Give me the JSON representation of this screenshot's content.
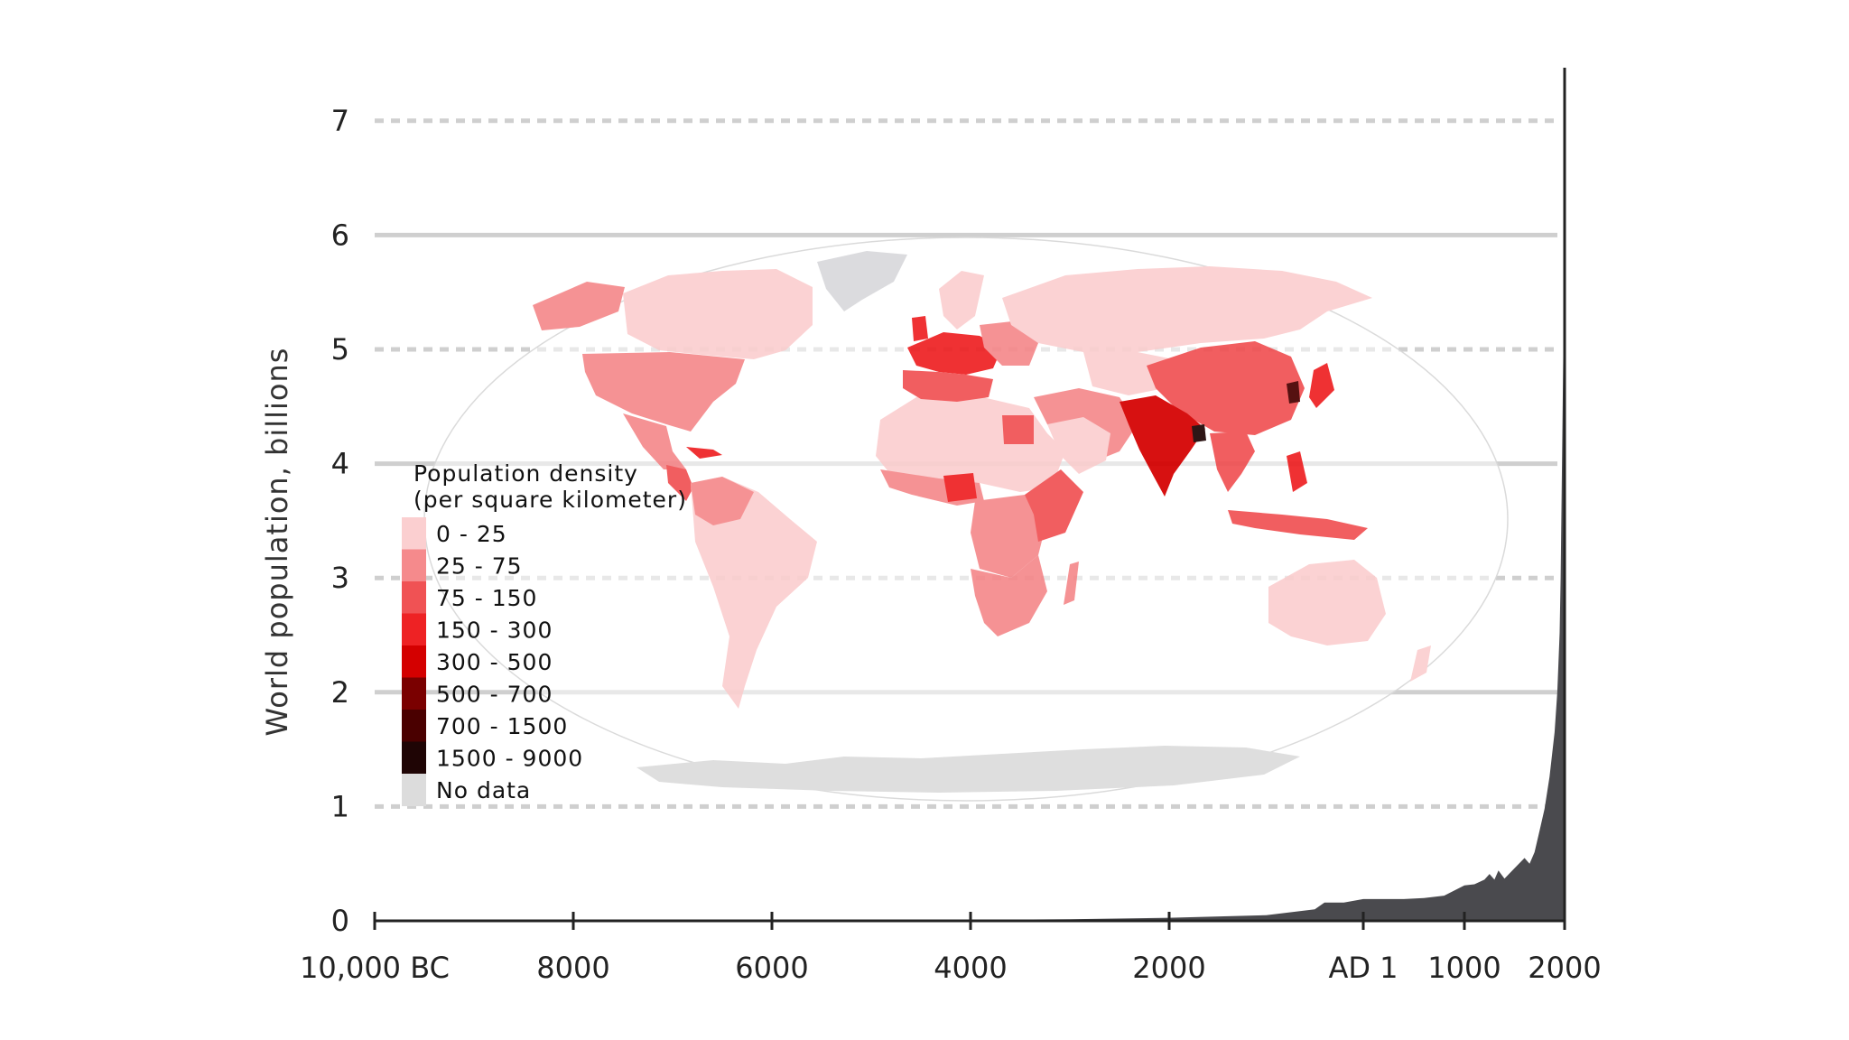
{
  "chart_data": {
    "type": "area",
    "title": "",
    "ylabel": "World population, billions",
    "xlabel": "",
    "ylim": [
      0,
      7.7
    ],
    "yticks": [
      0,
      1,
      2,
      3,
      4,
      5,
      6,
      7
    ],
    "ytick_labels": [
      "0",
      "1",
      "2",
      "3",
      "4",
      "5",
      "6",
      "7"
    ],
    "xticks": [
      -10000,
      -8000,
      -6000,
      -4000,
      -2000,
      0,
      1000,
      2000
    ],
    "xtick_labels": [
      "10,000 BC",
      "8000",
      "6000",
      "4000",
      "2000",
      "AD 1",
      "1000",
      "2000"
    ],
    "grid": "horizontal, alternating solid and dashed",
    "series": [
      {
        "values": [
          [
            -10000,
            0.004
          ],
          [
            -8000,
            0.005
          ],
          [
            -6000,
            0.005
          ],
          [
            -5000,
            0.005
          ],
          [
            -4000,
            0.007
          ],
          [
            -3000,
            0.014
          ],
          [
            -2000,
            0.027
          ],
          [
            -1000,
            0.05
          ],
          [
            -500,
            0.1
          ],
          [
            -400,
            0.16
          ],
          [
            -200,
            0.16
          ],
          [
            0,
            0.19
          ],
          [
            200,
            0.19
          ],
          [
            400,
            0.19
          ],
          [
            600,
            0.2
          ],
          [
            800,
            0.22
          ],
          [
            1000,
            0.31
          ],
          [
            1100,
            0.32
          ],
          [
            1200,
            0.36
          ],
          [
            1250,
            0.41
          ],
          [
            1300,
            0.36
          ],
          [
            1340,
            0.44
          ],
          [
            1400,
            0.37
          ],
          [
            1500,
            0.46
          ],
          [
            1600,
            0.55
          ],
          [
            1650,
            0.5
          ],
          [
            1700,
            0.6
          ],
          [
            1750,
            0.79
          ],
          [
            1800,
            0.98
          ],
          [
            1850,
            1.26
          ],
          [
            1900,
            1.65
          ],
          [
            1927,
            2.0
          ],
          [
            1950,
            2.52
          ],
          [
            1960,
            3.0
          ],
          [
            1974,
            4.0
          ],
          [
            1987,
            5.0
          ],
          [
            1999,
            6.0
          ],
          [
            2011,
            7.0
          ],
          [
            2012,
            7.05
          ]
        ]
      }
    ],
    "fill_color": "#4a4a4e",
    "inset_map": {
      "description": "World map of population density by country",
      "legend_title_lines": [
        "Population density",
        "(per square kilometer)"
      ],
      "legend": [
        {
          "label": "0 - 25",
          "color": "#fbcfd0"
        },
        {
          "label": "25 - 75",
          "color": "#f58a8c"
        },
        {
          "label": "75 - 150",
          "color": "#f05254"
        },
        {
          "label": "150 - 300",
          "color": "#ee2224"
        },
        {
          "label": "300 - 500",
          "color": "#d40000"
        },
        {
          "label": "500 - 700",
          "color": "#7a0000"
        },
        {
          "label": "700 - 1500",
          "color": "#4a0000"
        },
        {
          "label": "1500 - 9000",
          "color": "#1f0505"
        },
        {
          "label": "No data",
          "color": "#dcdcdc"
        }
      ]
    }
  }
}
